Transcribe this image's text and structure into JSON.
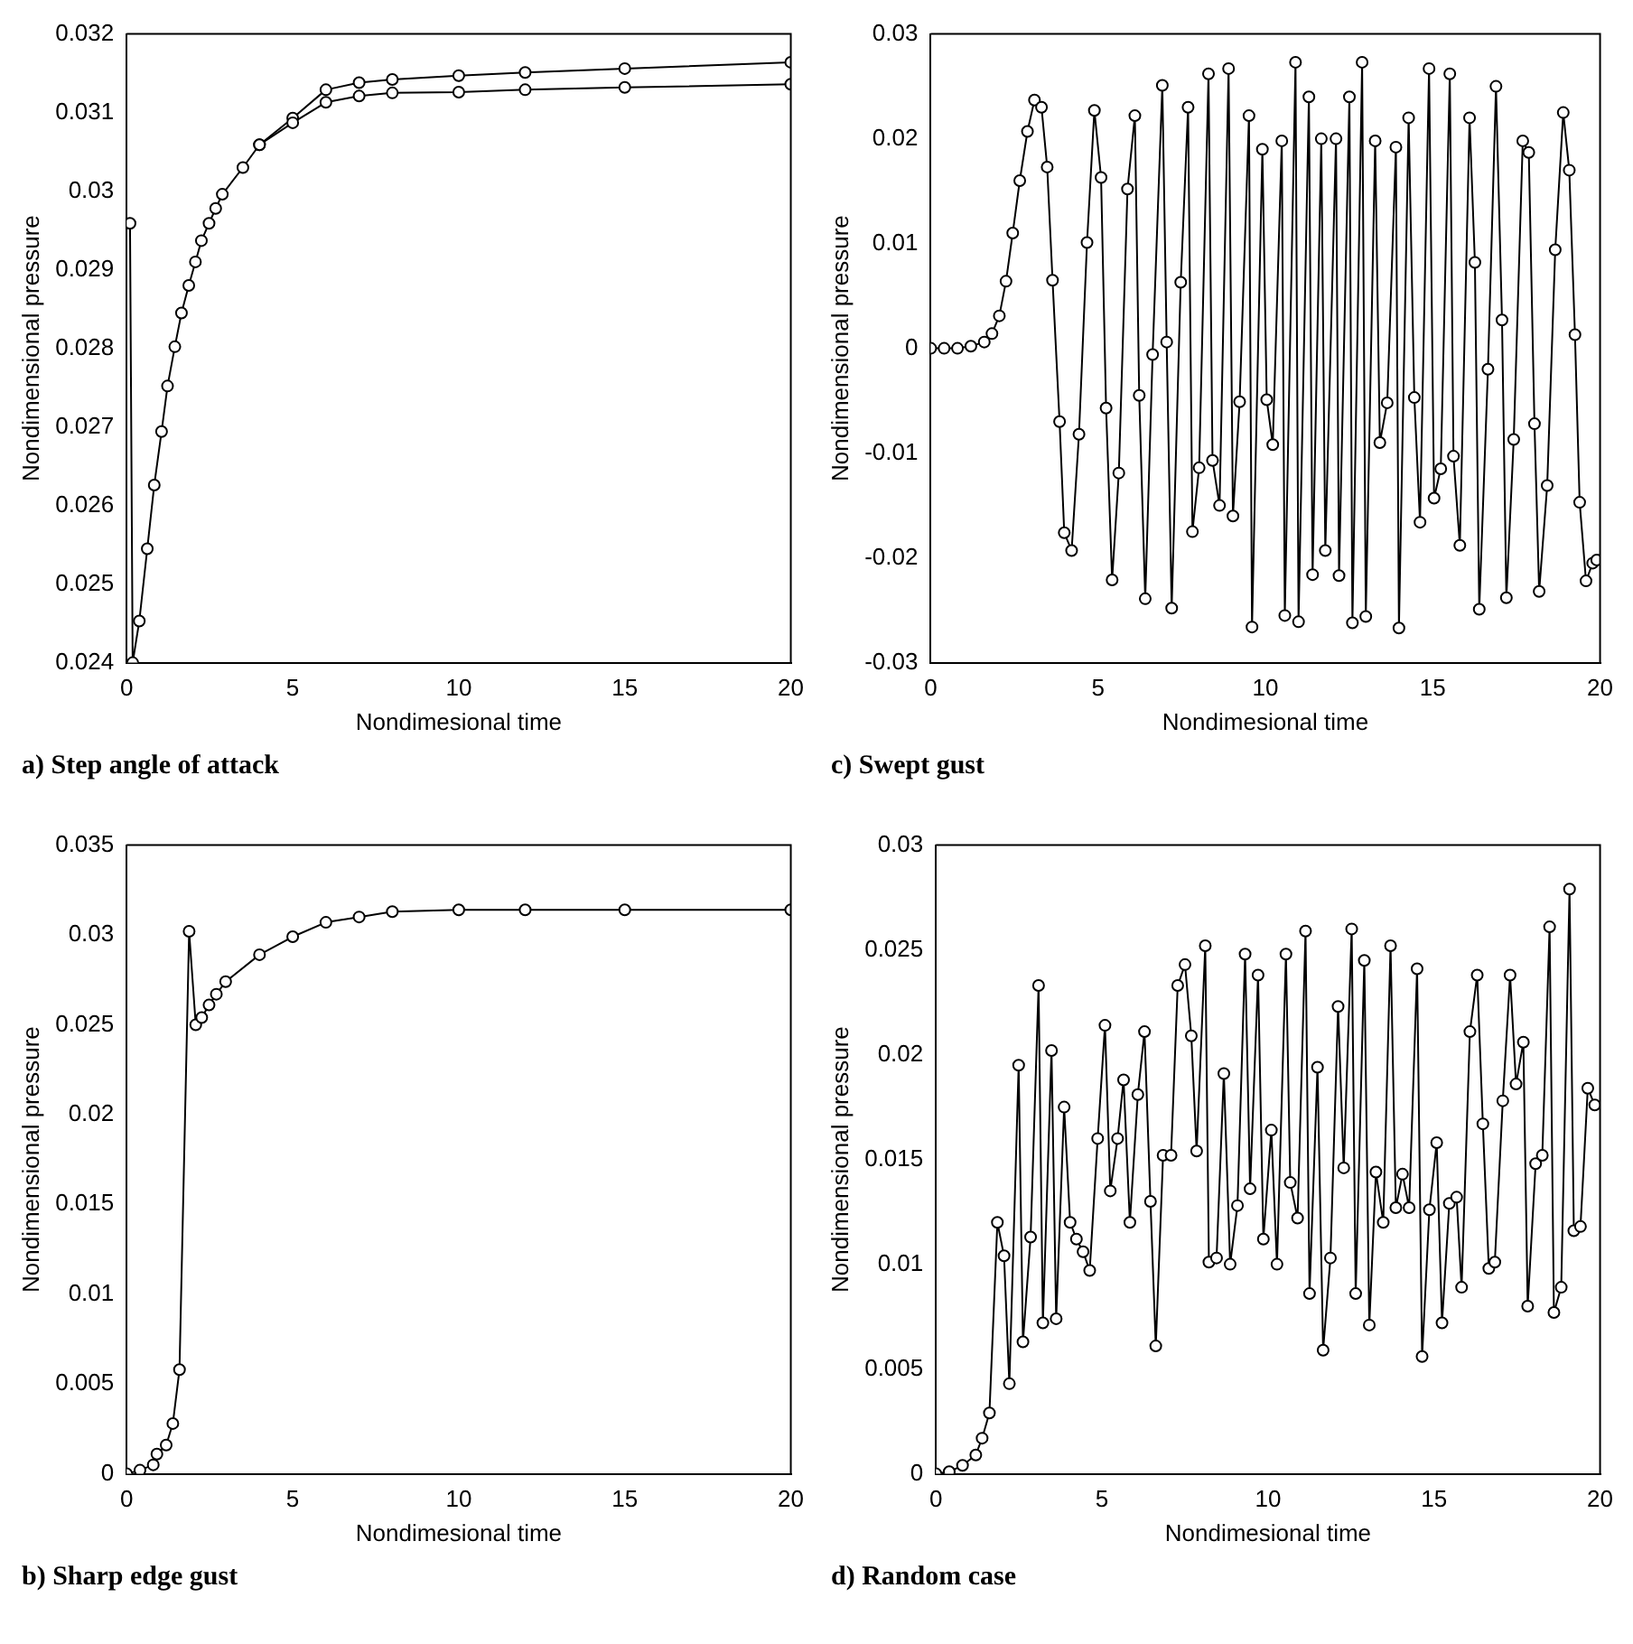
{
  "chart_data": [
    {
      "type": "line",
      "xlabel": "Nondimesional time",
      "ylabel": "Nondimensional pressure",
      "annotations": [
        "a) Step angle of attack"
      ],
      "xlim": [
        0,
        20
      ],
      "xticks": [
        0,
        5,
        10,
        15,
        20
      ],
      "ylim": [
        0.024,
        0.032
      ],
      "yticks": [
        0.024,
        0.025,
        0.026,
        0.027,
        0.028,
        0.029,
        0.03,
        0.031,
        0.032
      ],
      "grid": false,
      "legend": false,
      "marker": "circle",
      "line_style": "solid",
      "series": [
        {
          "color": "#000000",
          "x": [
            0.1,
            0.18,
            0.38,
            0.62,
            0.83,
            1.05,
            1.23,
            1.45,
            1.65,
            1.87,
            2.07,
            2.25,
            2.48,
            2.68,
            2.88,
            3.5,
            4,
            5,
            6,
            7,
            8,
            10,
            12,
            15,
            20
          ],
          "values": [
            0.02959,
            0.024,
            0.02453,
            0.02545,
            0.02626,
            0.02694,
            0.02752,
            0.02802,
            0.02845,
            0.0288,
            0.0291,
            0.02937,
            0.02959,
            0.02978,
            0.02996,
            0.0303,
            0.03059,
            0.03087,
            0.03113,
            0.03121,
            0.03125,
            0.03126,
            0.03129,
            0.03132,
            0.03136
          ]
        },
        {
          "color": "#000000",
          "x": [
            4,
            5,
            6,
            7,
            8,
            10,
            12,
            15,
            20
          ],
          "values": [
            0.03059,
            0.03093,
            0.03129,
            0.03138,
            0.03142,
            0.03147,
            0.03151,
            0.03156,
            0.03164
          ]
        }
      ]
    },
    {
      "type": "line",
      "xlabel": "Nondimesional time",
      "ylabel": "Nondimensional pressure",
      "annotations": [
        "c) Swept gust"
      ],
      "xlim": [
        0,
        20
      ],
      "xticks": [
        0,
        5,
        10,
        15,
        20
      ],
      "ylim": [
        -0.03,
        0.03
      ],
      "yticks": [
        -0.03,
        -0.02,
        -0.01,
        0,
        0.01,
        0.02,
        0.03
      ],
      "grid": false,
      "legend": false,
      "marker": "circle",
      "line_style": "solid",
      "series": [
        {
          "color": "#000000",
          "x": [
            0,
            0.4,
            0.8,
            1.2,
            1.6,
            1.83,
            2.05,
            2.25,
            2.45,
            2.66,
            2.89,
            3.1,
            3.31,
            3.48,
            3.64,
            3.85,
            3.99,
            4.21,
            4.43,
            4.67,
            4.89,
            5.09,
            5.24,
            5.42,
            5.62,
            5.88,
            6.1,
            6.23,
            6.41,
            6.63,
            6.92,
            7.05,
            7.2,
            7.47,
            7.69,
            7.82,
            8.02,
            8.3,
            8.42,
            8.63,
            8.9,
            9.03,
            9.23,
            9.51,
            9.6,
            9.91,
            10.04,
            10.22,
            10.49,
            10.58,
            10.9,
            10.99,
            11.3,
            11.41,
            11.67,
            11.79,
            12.11,
            12.2,
            12.51,
            12.6,
            12.89,
            13.0,
            13.28,
            13.42,
            13.64,
            13.9,
            13.99,
            14.28,
            14.45,
            14.62,
            14.89,
            15.04,
            15.24,
            15.51,
            15.62,
            15.81,
            16.1,
            16.26,
            16.39,
            16.65,
            16.89,
            17.07,
            17.2,
            17.42,
            17.69,
            17.87,
            18.04,
            18.18,
            18.42,
            18.66,
            18.9,
            19.08,
            19.25,
            19.39,
            19.58,
            19.78,
            19.9
          ],
          "values": [
            0,
            0,
            0,
            0.0002,
            0.0006,
            0.0014,
            0.0031,
            0.0064,
            0.011,
            0.016,
            0.0207,
            0.0237,
            0.023,
            0.0173,
            0.0065,
            -0.007,
            -0.0176,
            -0.0193,
            -0.0082,
            0.0101,
            0.0227,
            0.0163,
            -0.0057,
            -0.0221,
            -0.0119,
            0.0152,
            0.0222,
            -0.0045,
            -0.0239,
            -0.0006,
            0.0251,
            0.0006,
            -0.0248,
            0.0063,
            0.023,
            -0.0175,
            -0.0114,
            0.0262,
            -0.0107,
            -0.015,
            0.0267,
            -0.016,
            -0.0051,
            0.0222,
            -0.0266,
            0.019,
            -0.0049,
            -0.0092,
            0.0198,
            -0.0255,
            0.0273,
            -0.0261,
            0.024,
            -0.0216,
            0.02,
            -0.0193,
            0.02,
            -0.0217,
            0.024,
            -0.0262,
            0.0273,
            -0.0256,
            0.0198,
            -0.009,
            -0.0052,
            0.0192,
            -0.0267,
            0.022,
            -0.0047,
            -0.0166,
            0.0267,
            -0.0143,
            -0.0115,
            0.0262,
            -0.0103,
            -0.0188,
            0.022,
            0.0082,
            -0.0249,
            -0.002,
            0.025,
            0.0027,
            -0.0238,
            -0.0087,
            0.0198,
            0.0187,
            -0.0072,
            -0.0232,
            -0.0131,
            0.0094,
            0.0225,
            0.017,
            0.0013,
            -0.0147,
            -0.0222,
            -0.0205,
            -0.0202
          ]
        }
      ]
    },
    {
      "type": "line",
      "xlabel": "Nondimesional time",
      "ylabel": "Nondimensional pressure",
      "annotations": [
        "b) Sharp edge gust"
      ],
      "xlim": [
        0,
        20
      ],
      "xticks": [
        0,
        5,
        10,
        15,
        20
      ],
      "ylim": [
        0,
        0.035
      ],
      "yticks": [
        0,
        0.005,
        0.01,
        0.015,
        0.02,
        0.025,
        0.03,
        0.035
      ],
      "grid": false,
      "legend": false,
      "marker": "circle",
      "line_style": "solid",
      "series": [
        {
          "color": "#000000",
          "x": [
            0,
            0.4,
            0.8,
            0.91,
            1.19,
            1.39,
            1.59,
            1.88,
            2.08,
            2.26,
            2.48,
            2.7,
            2.98,
            4,
            5,
            6,
            7,
            8,
            10,
            12,
            15,
            20
          ],
          "values": [
            0,
            0.0002,
            0.0005,
            0.0011,
            0.0016,
            0.0028,
            0.0058,
            0.0302,
            0.025,
            0.0254,
            0.0261,
            0.0267,
            0.0274,
            0.0289,
            0.0299,
            0.0307,
            0.031,
            0.0313,
            0.0314,
            0.0314,
            0.0314,
            0.0314
          ]
        }
      ]
    },
    {
      "type": "line",
      "xlabel": "Nondimesional time",
      "ylabel": "Nondimensional pressure",
      "annotations": [
        "d) Random case"
      ],
      "xlim": [
        0,
        20
      ],
      "xticks": [
        0,
        5,
        10,
        15,
        20
      ],
      "ylim": [
        0,
        0.03
      ],
      "yticks": [
        0,
        0.005,
        0.01,
        0.015,
        0.02,
        0.025,
        0.03
      ],
      "grid": false,
      "legend": false,
      "marker": "circle",
      "line_style": "solid",
      "series": [
        {
          "color": "#000000",
          "x": [
            0,
            0.4,
            0.8,
            1.2,
            1.39,
            1.61,
            1.85,
            2.05,
            2.21,
            2.49,
            2.62,
            2.85,
            3.09,
            3.22,
            3.48,
            3.62,
            3.86,
            4.04,
            4.23,
            4.43,
            4.63,
            4.87,
            5.09,
            5.25,
            5.47,
            5.65,
            5.84,
            6.08,
            6.28,
            6.46,
            6.62,
            6.84,
            7.08,
            7.28,
            7.5,
            7.69,
            7.85,
            8.11,
            8.22,
            8.45,
            8.67,
            8.86,
            9.08,
            9.31,
            9.46,
            9.7,
            9.86,
            10.1,
            10.27,
            10.54,
            10.67,
            10.89,
            11.13,
            11.25,
            11.49,
            11.66,
            11.88,
            12.11,
            12.28,
            12.52,
            12.64,
            12.9,
            13.05,
            13.25,
            13.47,
            13.69,
            13.85,
            14.05,
            14.25,
            14.49,
            14.64,
            14.86,
            15.08,
            15.24,
            15.46,
            15.68,
            15.83,
            16.08,
            16.3,
            16.47,
            16.65,
            16.83,
            17.07,
            17.29,
            17.47,
            17.69,
            17.82,
            18.06,
            18.26,
            18.48,
            18.61,
            18.83,
            19.08,
            19.21,
            19.41,
            19.63,
            19.84
          ],
          "values": [
            0,
            0.0001,
            0.0004,
            0.0009,
            0.0017,
            0.0029,
            0.012,
            0.0104,
            0.0043,
            0.0195,
            0.0063,
            0.0113,
            0.0233,
            0.0072,
            0.0202,
            0.0074,
            0.0175,
            0.012,
            0.0112,
            0.0106,
            0.0097,
            0.016,
            0.0214,
            0.0135,
            0.016,
            0.0188,
            0.012,
            0.0181,
            0.0211,
            0.013,
            0.0061,
            0.0152,
            0.0152,
            0.0233,
            0.0243,
            0.0209,
            0.0154,
            0.0252,
            0.0101,
            0.0103,
            0.0191,
            0.01,
            0.0128,
            0.0248,
            0.0136,
            0.0238,
            0.0112,
            0.0164,
            0.01,
            0.0248,
            0.0139,
            0.0122,
            0.0259,
            0.0086,
            0.0194,
            0.0059,
            0.0103,
            0.0223,
            0.0146,
            0.026,
            0.0086,
            0.0245,
            0.0071,
            0.0144,
            0.012,
            0.0252,
            0.0127,
            0.0143,
            0.0127,
            0.0241,
            0.0056,
            0.0126,
            0.0158,
            0.0072,
            0.0129,
            0.0132,
            0.0089,
            0.0211,
            0.0238,
            0.0167,
            0.0098,
            0.0101,
            0.0178,
            0.0238,
            0.0186,
            0.0206,
            0.008,
            0.0148,
            0.0152,
            0.0261,
            0.0077,
            0.0089,
            0.0279,
            0.0116,
            0.0118,
            0.0184,
            0.0176
          ]
        }
      ]
    }
  ]
}
